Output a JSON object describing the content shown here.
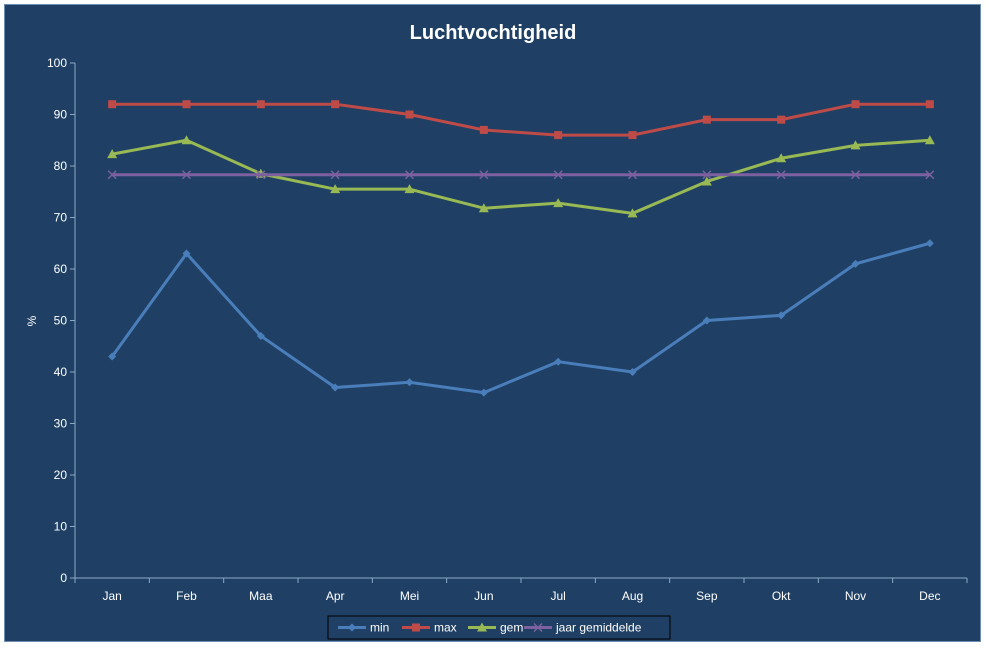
{
  "chart_data": {
    "type": "line",
    "title": "Luchtvochtigheid",
    "xlabel": "",
    "ylabel": "%",
    "ylim": [
      0,
      100
    ],
    "yticks": [
      0,
      10,
      20,
      30,
      40,
      50,
      60,
      70,
      80,
      90,
      100
    ],
    "categories": [
      "Jan",
      "Feb",
      "Maa",
      "Apr",
      "Mei",
      "Jun",
      "Jul",
      "Aug",
      "Sep",
      "Okt",
      "Nov",
      "Dec"
    ],
    "grid": false,
    "legend_position": "bottom",
    "series": [
      {
        "name": "min",
        "color": "#4a7ebb",
        "marker": "diamond",
        "values": [
          43,
          63,
          47,
          37,
          38,
          36,
          42,
          40,
          50,
          51,
          61,
          65
        ]
      },
      {
        "name": "max",
        "color": "#be4b48",
        "marker": "square",
        "values": [
          92,
          92,
          92,
          92,
          90,
          87,
          86,
          86,
          89,
          89,
          92,
          92
        ]
      },
      {
        "name": "gem",
        "color": "#98b954",
        "marker": "triangle",
        "values": [
          82.3,
          85,
          78.5,
          75.5,
          75.5,
          71.8,
          72.8,
          70.8,
          77,
          81.5,
          84,
          85
        ]
      },
      {
        "name": "jaar gemiddelde",
        "color": "#7d60a0",
        "marker": "x",
        "values": [
          78.3,
          78.3,
          78.3,
          78.3,
          78.3,
          78.3,
          78.3,
          78.3,
          78.3,
          78.3,
          78.3,
          78.3
        ]
      }
    ]
  }
}
